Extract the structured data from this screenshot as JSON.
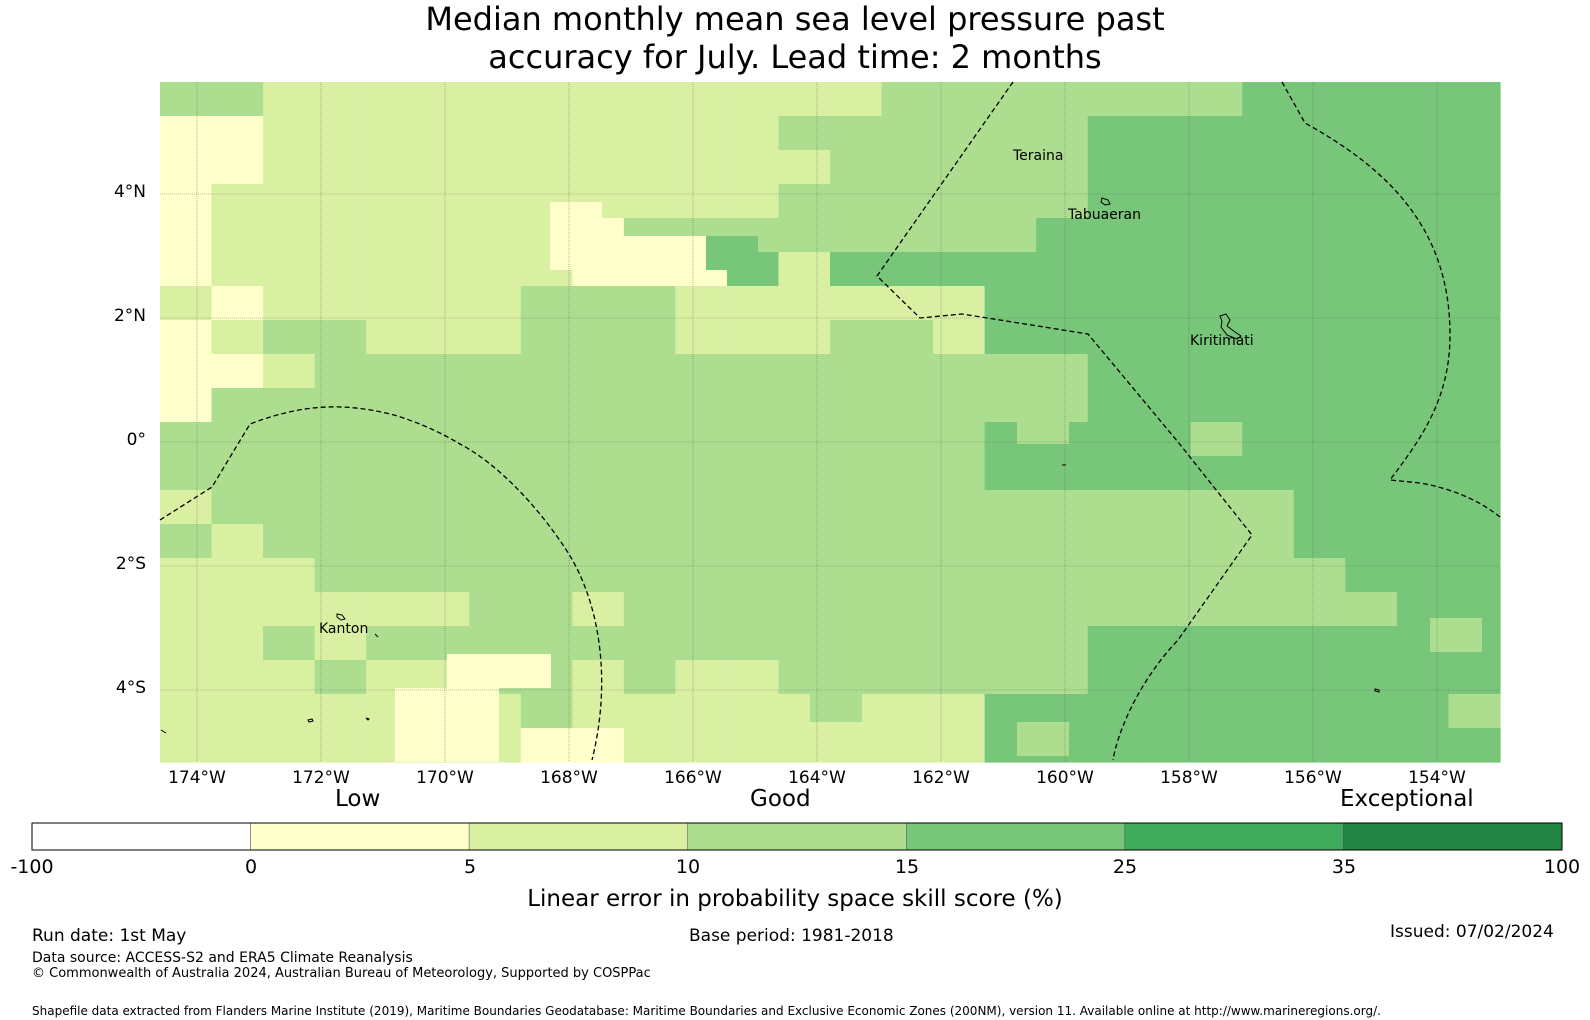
{
  "title": {
    "line1": "Median monthly mean sea level pressure past",
    "line2": "accuracy for July. Lead time: 2 months"
  },
  "map": {
    "longitude_ticks": [
      "174°W",
      "172°W",
      "170°W",
      "168°W",
      "166°W",
      "164°W",
      "162°W",
      "160°W",
      "158°W",
      "156°W",
      "154°W"
    ],
    "latitude_ticks": [
      "4°N",
      "2°N",
      "0°",
      "2°S",
      "4°S"
    ],
    "places": [
      {
        "name": "Teraina"
      },
      {
        "name": "Tabuaeran"
      },
      {
        "name": "Kiritimati"
      },
      {
        "name": "Kanton"
      }
    ],
    "category_colors": {
      "0-5": "#ffffcc",
      "5-10": "#d9f0a3",
      "10-15": "#addd8e",
      "15-25": "#78c679",
      "25-35": "#41ab5d",
      "35-100": "#238443",
      "below-0": "#ffffff"
    }
  },
  "colorbar": {
    "labels": {
      "low": "Low",
      "good": "Good",
      "exceptional": "Exceptional"
    },
    "ticks": [
      "-100",
      "0",
      "5",
      "10",
      "15",
      "25",
      "35",
      "100"
    ],
    "colors": [
      "#ffffff",
      "#ffffcc",
      "#d9f0a3",
      "#addd8e",
      "#78c679",
      "#41ab5d",
      "#238443"
    ],
    "title": "Linear error in probability space skill score (%)"
  },
  "footer": {
    "run_date": "Run date: 1st May",
    "base_period": "Base period: 1981-2018",
    "issued": "Issued: 07/02/2024",
    "data_source": "Data source: ACCESS-S2 and ERA5 Climate Reanalysis",
    "copyright": "© Commonwealth of Australia 2024, Australian Bureau of Meteorology, Supported by COSPPac",
    "shapefile": "Shapefile data extracted from Flanders Marine Institute (2019), Maritime Boundaries Geodatabase: Maritime Boundaries and Exclusive Economic Zones (200NM), version 11. Available online at http://www.marineregions.org/."
  }
}
